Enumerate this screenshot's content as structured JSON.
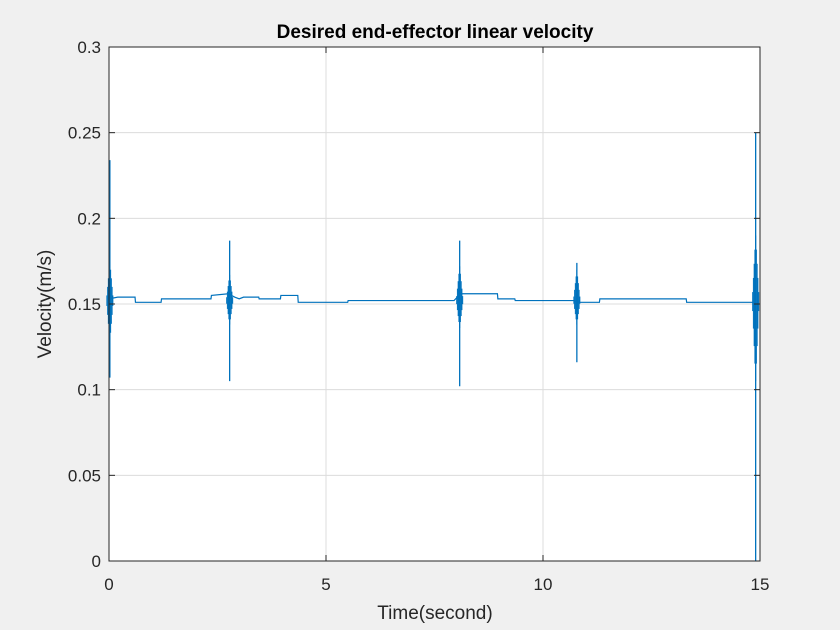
{
  "chart_data": {
    "type": "line",
    "title": "Desired end-effector linear velocity",
    "xlabel": "Time(second)",
    "ylabel": "Velocity(m/s)",
    "xlim": [
      0,
      15
    ],
    "ylim": [
      0,
      0.3
    ],
    "grid": true,
    "xticks": [
      0,
      5,
      10,
      15
    ],
    "yticks": [
      0,
      0.05,
      0.1,
      0.15,
      0.2,
      0.25,
      0.3
    ],
    "xtick_labels": [
      "0",
      "5",
      "10",
      "15"
    ],
    "ytick_labels": [
      "0",
      "0.05",
      "0.1",
      "0.15",
      "0.2",
      "0.25",
      "0.3"
    ],
    "series": [
      {
        "name": "velocity",
        "color": "#0072bd",
        "x": [
          0.0,
          0.2,
          0.6,
          0.61,
          1.2,
          1.21,
          2.35,
          2.36,
          2.75,
          2.9,
          3.0,
          3.1,
          3.45,
          3.46,
          3.95,
          3.96,
          4.35,
          4.36,
          5.5,
          5.51,
          7.95,
          8.1,
          8.95,
          8.96,
          9.35,
          9.36,
          10.7,
          10.85,
          11.3,
          11.31,
          13.3,
          13.31,
          14.85
        ],
        "y": [
          0.153,
          0.154,
          0.154,
          0.151,
          0.151,
          0.153,
          0.153,
          0.155,
          0.156,
          0.154,
          0.153,
          0.154,
          0.154,
          0.153,
          0.153,
          0.155,
          0.155,
          0.151,
          0.151,
          0.152,
          0.152,
          0.156,
          0.156,
          0.153,
          0.153,
          0.152,
          0.152,
          0.151,
          0.151,
          0.153,
          0.153,
          0.151,
          0.151
        ]
      }
    ],
    "spikes": [
      {
        "x": 0.02,
        "max": 0.234,
        "min": 0.107,
        "env_max": 0.175,
        "env_min": 0.128
      },
      {
        "x": 2.78,
        "max": 0.187,
        "min": 0.105,
        "env_max": 0.167,
        "env_min": 0.138
      },
      {
        "x": 8.08,
        "max": 0.187,
        "min": 0.102,
        "env_max": 0.172,
        "env_min": 0.136
      },
      {
        "x": 10.78,
        "max": 0.174,
        "min": 0.116,
        "env_max": 0.17,
        "env_min": 0.138
      },
      {
        "x": 14.9,
        "max": 0.25,
        "min": 0.0,
        "env_max": 0.19,
        "env_min": 0.105
      }
    ]
  }
}
